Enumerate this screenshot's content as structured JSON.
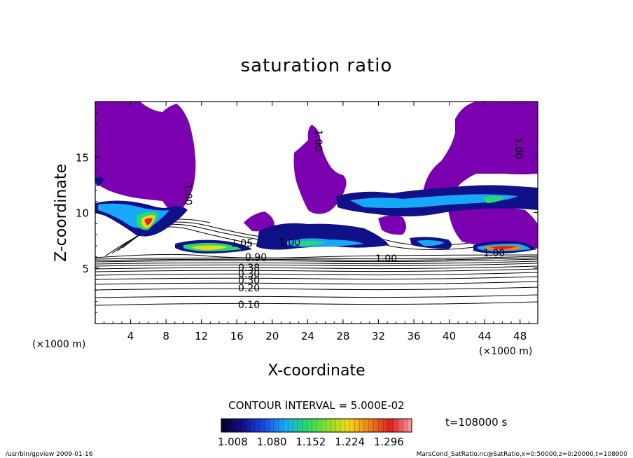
{
  "chart_data": {
    "type": "heatmap",
    "title": "saturation ratio",
    "xlabel": "X-coordinate",
    "ylabel": "Z-coordinate",
    "x_unit": "(×1000 m)",
    "y_unit": "(×1000 m)",
    "xlim": [
      0,
      50
    ],
    "ylim": [
      0,
      20
    ],
    "x_ticks": [
      4,
      8,
      12,
      16,
      20,
      24,
      28,
      32,
      36,
      40,
      44,
      48
    ],
    "y_ticks": [
      5,
      10,
      15
    ],
    "contour_interval_text": "CONTOUR INTERVAL = 5.000E-02",
    "contour_labels": [
      "0.10",
      "0.20",
      "0.30",
      "0.30",
      "0.38",
      "0.90",
      "1.00",
      "1.00",
      "1.00",
      "1.00",
      "1.05",
      "1.00",
      "1.00"
    ],
    "colorbar": {
      "min": 1.008,
      "max": 1.296,
      "tick_labels": [
        "1.008",
        "1.080",
        "1.152",
        "1.224",
        "1.296"
      ],
      "colors": [
        "#06002a",
        "#101088",
        "#1e48e6",
        "#18a8f8",
        "#28d870",
        "#88e028",
        "#f0d818",
        "#f08018",
        "#e02020",
        "#f8a0a0"
      ]
    },
    "saturated_color": "#7a00b0",
    "grid": false,
    "time_label": "t=108000 s"
  },
  "footer": {
    "left": "/usr/bin/gpview   2009-01-16",
    "right": "MarsCond_SatRatio.nc@SatRatio,x=0:50000,z=0:20000,t=108000"
  }
}
